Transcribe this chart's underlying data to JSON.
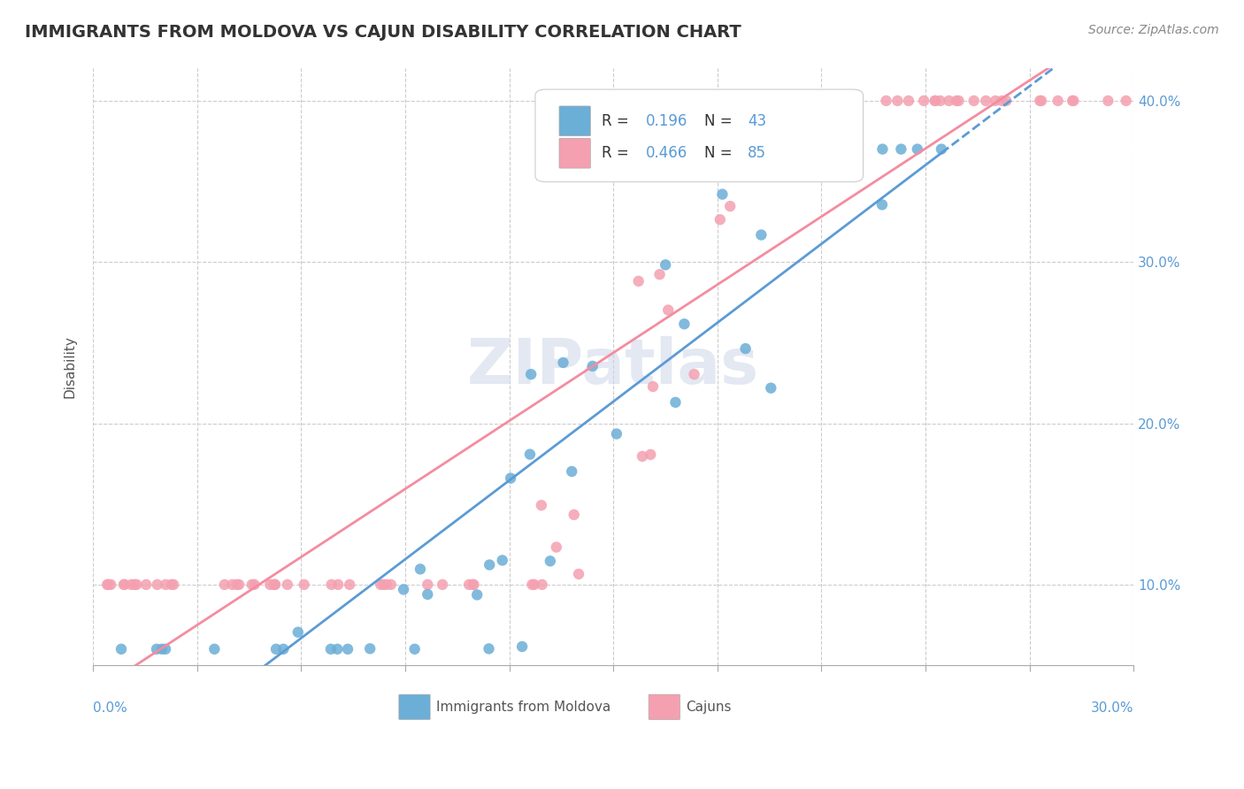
{
  "title": "IMMIGRANTS FROM MOLDOVA VS CAJUN DISABILITY CORRELATION CHART",
  "source": "Source: ZipAtlas.com",
  "ylabel": "Disability",
  "xlim": [
    0.0,
    0.3
  ],
  "ylim": [
    0.05,
    0.42
  ],
  "yticks": [
    0.1,
    0.2,
    0.3,
    0.4
  ],
  "ytick_labels": [
    "10.0%",
    "20.0%",
    "30.0%",
    "40.0%"
  ],
  "color_blue": "#6baed6",
  "color_pink": "#f4a0b0",
  "line_blue": "#5b9bd5",
  "line_pink": "#f48ca0",
  "watermark": "ZIPatlas"
}
